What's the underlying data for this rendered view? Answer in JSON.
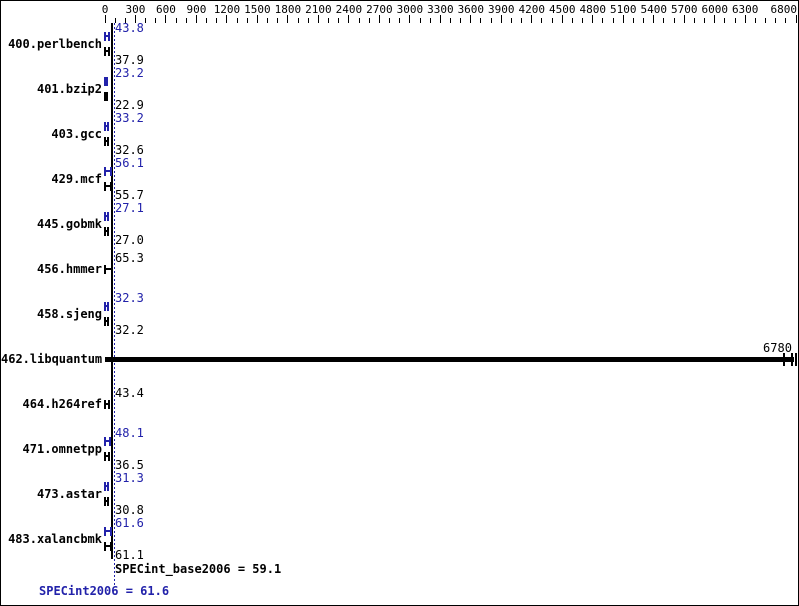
{
  "colors": {
    "peak_blue": "#2222aa",
    "base_black": "#000000",
    "background": "#ffffff"
  },
  "chart_data": {
    "type": "bar",
    "orientation": "horizontal",
    "title": "",
    "xlabel": "",
    "ylabel": "",
    "grid": false,
    "legend": "none",
    "axis": {
      "min": 0,
      "max": 6800,
      "minor_step": 100,
      "tick_labels": [
        "0",
        "300",
        "600",
        "900",
        "1200",
        "1500",
        "1800",
        "2100",
        "2400",
        "2700",
        "3000",
        "3300",
        "3600",
        "3900",
        "4200",
        "4500",
        "4800",
        "5100",
        "5400",
        "5700",
        "6000",
        "6300",
        "6800"
      ]
    },
    "series_meaning": {
      "peak": "SPECint2006 (blue)",
      "base": "SPECint_base2006 (black)"
    },
    "benchmarks": [
      {
        "name": "400.perlbench",
        "peak": "43.8",
        "base": "37.9"
      },
      {
        "name": "401.bzip2",
        "peak": "23.2",
        "base": "22.9"
      },
      {
        "name": "403.gcc",
        "peak": "33.2",
        "base": "32.6"
      },
      {
        "name": "429.mcf",
        "peak": "56.1",
        "base": "55.7"
      },
      {
        "name": "445.gobmk",
        "peak": "27.1",
        "base": "27.0"
      },
      {
        "name": "456.hmmer",
        "peak": "",
        "base": "65.3"
      },
      {
        "name": "458.sjeng",
        "peak": "32.3",
        "base": "32.2"
      },
      {
        "name": "462.libquantum",
        "peak": "",
        "base": "6780",
        "big_bar": true
      },
      {
        "name": "464.h264ref",
        "peak": "",
        "base": "43.4"
      },
      {
        "name": "471.omnetpp",
        "peak": "48.1",
        "base": "36.5"
      },
      {
        "name": "473.astar",
        "peak": "31.3",
        "base": "30.8"
      },
      {
        "name": "483.xalancbmk",
        "peak": "61.6",
        "base": "61.1"
      }
    ],
    "summary": {
      "base_text": "SPECint_base2006 = 59.1",
      "base_value": 59.1,
      "peak_text": "SPECint2006 = 61.6",
      "peak_value": 61.6
    }
  }
}
